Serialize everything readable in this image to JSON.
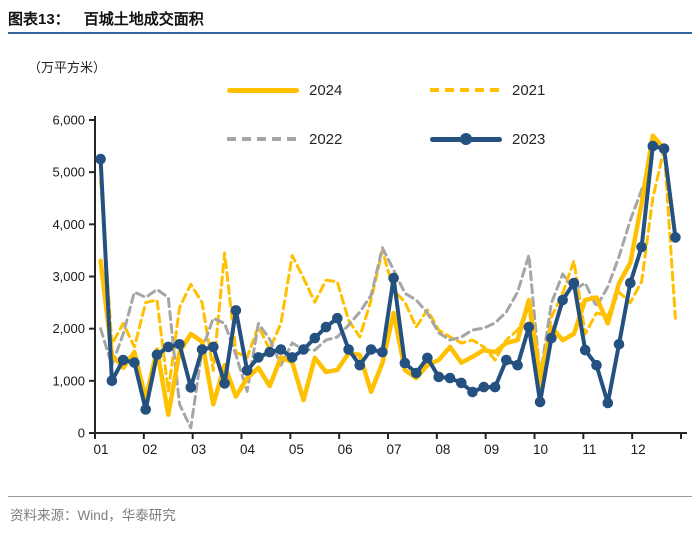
{
  "header": {
    "title_prefix": "图表13：",
    "title": "百城土地成交面积"
  },
  "chart_data": {
    "type": "line",
    "title": "百城土地成交面积",
    "unit_label": "（万平方米）",
    "xlabel": "",
    "ylabel": "万平方米",
    "ylim": [
      0,
      6000
    ],
    "y_ticks": [
      0,
      1000,
      2000,
      3000,
      4000,
      5000,
      6000
    ],
    "y_tick_labels": [
      "0",
      "1,000",
      "2,000",
      "3,000",
      "4,000",
      "5,000",
      "6,000"
    ],
    "x_tick_labels": [
      "01",
      "02",
      "03",
      "04",
      "05",
      "06",
      "07",
      "08",
      "09",
      "10",
      "11",
      "12"
    ],
    "x_unit": "week-of-year",
    "weeks_per_year": 52,
    "grid": false,
    "legend_position": "top",
    "series": [
      {
        "name": "2024",
        "color": "#FFC000",
        "style": "solid",
        "width": 4.5,
        "values": [
          3300,
          1500,
          1250,
          1550,
          650,
          1600,
          350,
          1550,
          1900,
          1750,
          550,
          1300,
          700,
          1050,
          1250,
          900,
          1450,
          1360,
          630,
          1440,
          1170,
          1210,
          1530,
          1500,
          790,
          1340,
          2300,
          1210,
          1050,
          1300,
          1400,
          1650,
          1350,
          1460,
          1590,
          1550,
          1725,
          1780,
          2550,
          1075,
          2030,
          1780,
          1900,
          2550,
          2600,
          2100,
          2870,
          3260,
          4400,
          5700,
          5450,
          null
        ]
      },
      {
        "name": "2021",
        "color": "#FFC000",
        "style": "dashed",
        "width": 3,
        "values": [
          4850,
          1700,
          2100,
          1650,
          2500,
          2550,
          800,
          2400,
          2850,
          2500,
          1200,
          3450,
          1550,
          1450,
          2050,
          1600,
          2100,
          3400,
          2970,
          2510,
          2930,
          2900,
          2160,
          1840,
          2550,
          3500,
          2740,
          2510,
          2030,
          2360,
          1975,
          1840,
          1725,
          1780,
          1650,
          1400,
          1780,
          1975,
          2400,
          880,
          2220,
          2680,
          3300,
          1900,
          2300,
          2250,
          2700,
          2500,
          2900,
          4500,
          5450,
          2200
        ]
      },
      {
        "name": "2022",
        "color": "#A6A6A6",
        "style": "dashed",
        "width": 3,
        "values": [
          2000,
          1300,
          1900,
          2700,
          2600,
          2750,
          2600,
          550,
          100,
          1600,
          2200,
          2100,
          1500,
          800,
          2100,
          1800,
          1300,
          1725,
          1600,
          1590,
          1780,
          1840,
          2070,
          2320,
          2640,
          3550,
          3125,
          2680,
          2550,
          2300,
          1920,
          1780,
          1840,
          1975,
          2010,
          2110,
          2320,
          2700,
          3410,
          1075,
          2490,
          3050,
          2740,
          2875,
          2420,
          2800,
          3380,
          4080,
          4660,
          5230,
          null,
          null
        ]
      },
      {
        "name": "2023",
        "color": "#24517F",
        "style": "solid-marker",
        "width": 4,
        "values": [
          5250,
          1000,
          1400,
          1350,
          450,
          1500,
          1650,
          1700,
          875,
          1600,
          1650,
          950,
          2350,
          1200,
          1450,
          1550,
          1600,
          1450,
          1600,
          1820,
          2030,
          2200,
          1600,
          1300,
          1600,
          1550,
          2970,
          1340,
          1150,
          1440,
          1075,
          1055,
          960,
          785,
          880,
          880,
          1400,
          1300,
          2030,
          595,
          1820,
          2550,
          2875,
          1590,
          1300,
          575,
          1700,
          2875,
          3565,
          5500,
          5450,
          3750
        ]
      }
    ]
  },
  "footer": {
    "source": "资料来源：Wind，华泰研究"
  }
}
